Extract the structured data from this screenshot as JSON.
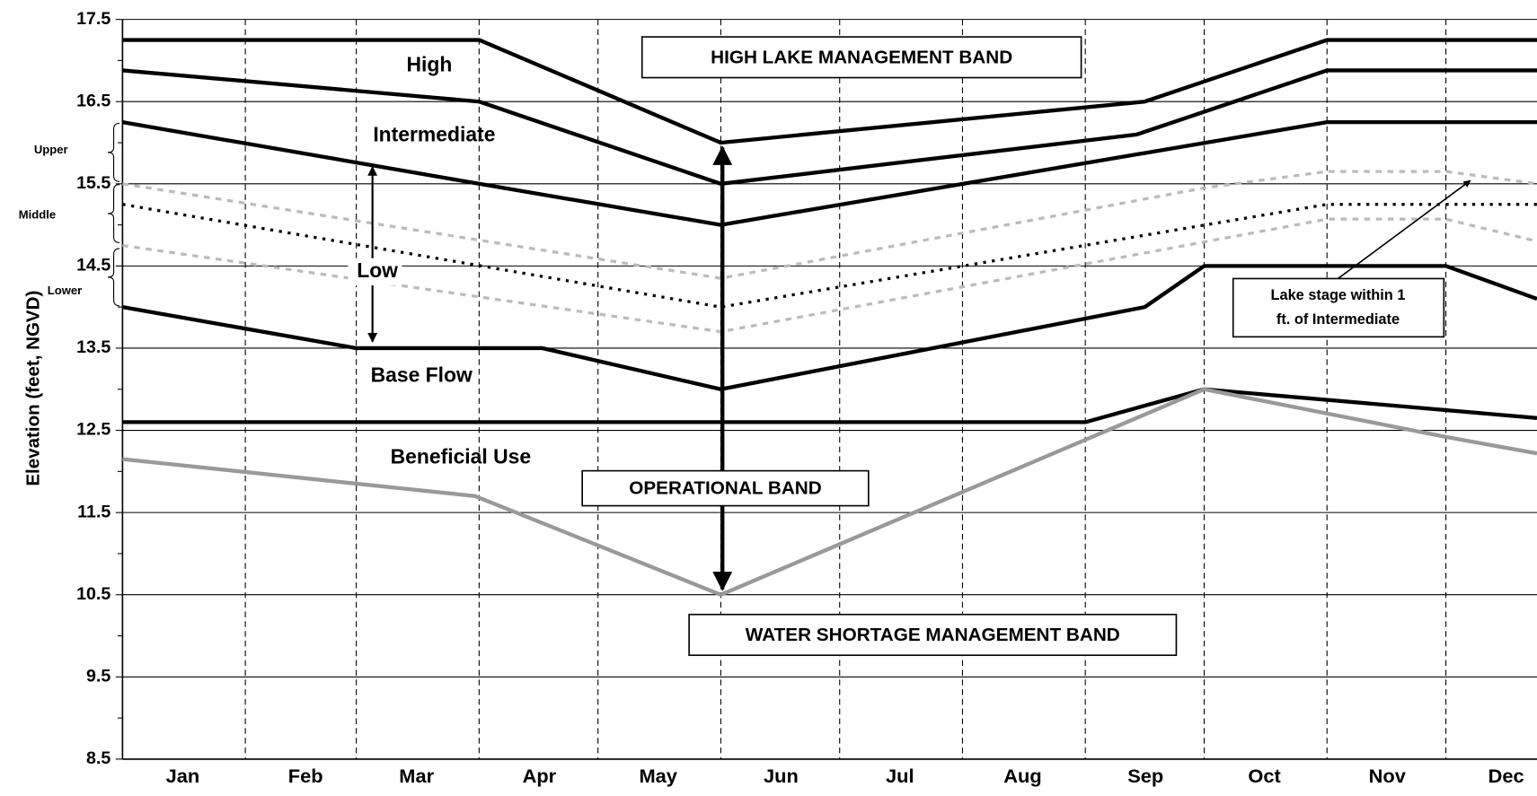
{
  "chart_data": {
    "type": "line",
    "y_label": "Elevation (feet, NGVD)",
    "xlim": [
      0,
      357
    ],
    "xticks": [
      {
        "value": 0,
        "label": "Jan"
      },
      {
        "value": 31,
        "label": "Feb"
      },
      {
        "value": 59,
        "label": "Mar"
      },
      {
        "value": 90,
        "label": "Apr"
      },
      {
        "value": 120,
        "label": "May"
      },
      {
        "value": 151,
        "label": "Jun"
      },
      {
        "value": 181,
        "label": "Jul"
      },
      {
        "value": 212,
        "label": "Aug"
      },
      {
        "value": 243,
        "label": "Sep"
      },
      {
        "value": 273,
        "label": "Oct"
      },
      {
        "value": 304,
        "label": "Nov"
      },
      {
        "value": 334,
        "label": "Dec"
      }
    ],
    "ylim": [
      8.5,
      17.5
    ],
    "yticks": [
      8.5,
      9.5,
      10.5,
      11.5,
      12.5,
      13.5,
      14.5,
      15.5,
      16.5,
      17.5
    ],
    "grid": true,
    "series": [
      {
        "color": "#000000",
        "style": "solid",
        "x": [
          0,
          90,
          151,
          258,
          304,
          357
        ],
        "values": [
          17.25,
          17.25,
          16.0,
          16.5,
          17.25,
          17.25
        ]
      },
      {
        "color": "#000000",
        "style": "solid",
        "x": [
          0,
          90,
          151,
          256,
          304,
          357
        ],
        "values": [
          16.88,
          16.5,
          15.5,
          16.1,
          16.88,
          16.88
        ]
      },
      {
        "color": "#000000",
        "style": "solid",
        "x": [
          0,
          90,
          151,
          304,
          357
        ],
        "values": [
          16.25,
          15.5,
          15.0,
          16.25,
          16.25
        ]
      },
      {
        "color": "#000000",
        "style": "solid",
        "x": [
          0,
          59,
          106,
          151,
          258,
          273,
          334,
          357
        ],
        "values": [
          14.0,
          13.5,
          13.5,
          13.0,
          14.0,
          14.5,
          14.5,
          14.1
        ]
      },
      {
        "color": "#000000",
        "style": "solid",
        "x": [
          0,
          243,
          273,
          357
        ],
        "values": [
          12.6,
          12.6,
          13.0,
          12.65
        ]
      },
      {
        "color": "#999999",
        "style": "solid",
        "x": [
          0,
          89,
          151,
          273,
          334,
          357
        ],
        "values": [
          12.15,
          11.7,
          10.5,
          13.0,
          12.42,
          12.22
        ]
      },
      {
        "color": "#000000",
        "style": "dotted",
        "x": [
          0,
          151,
          304,
          357
        ],
        "values": [
          15.25,
          14.0,
          15.25,
          15.25
        ]
      },
      {
        "color": "#bbbbbb",
        "style": "dashed",
        "x": [
          0,
          151,
          273,
          304,
          334,
          357
        ],
        "values": [
          15.5,
          14.35,
          15.45,
          15.65,
          15.65,
          15.5
        ]
      },
      {
        "color": "#bbbbbb",
        "style": "dashed",
        "x": [
          0,
          151,
          304,
          334,
          357
        ],
        "values": [
          14.75,
          13.7,
          15.07,
          15.07,
          14.8
        ]
      }
    ],
    "annotations": [
      {
        "text": "High"
      },
      {
        "text": "Intermediate"
      },
      {
        "text": "Low"
      },
      {
        "text": "Base Flow"
      },
      {
        "text": "Beneficial Use"
      },
      {
        "text": "HIGH LAKE MANAGEMENT BAND"
      },
      {
        "text": "OPERATIONAL BAND"
      },
      {
        "text": "WATER SHORTAGE MANAGEMENT BAND"
      },
      {
        "text": [
          "Lake stage within 1",
          "ft. of Intermediate"
        ]
      },
      {
        "text": "Upper"
      },
      {
        "text": "Middle"
      },
      {
        "text": "Lower"
      }
    ]
  }
}
